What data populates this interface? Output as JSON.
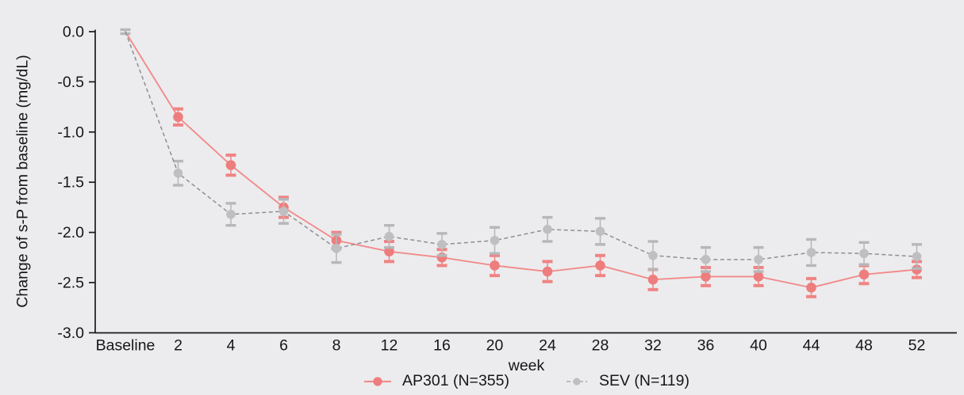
{
  "page": {
    "background_color": "#ececee",
    "axis_color": "#1a1a1a",
    "text_color": "#161616"
  },
  "chart_data": {
    "type": "line",
    "error_bars": true,
    "title": "",
    "xlabel": "week",
    "ylabel": "Change of s-P from baseline (mg/dL)",
    "categories": [
      "Baseline",
      "2",
      "4",
      "6",
      "8",
      "12",
      "16",
      "20",
      "24",
      "28",
      "32",
      "36",
      "40",
      "44",
      "48",
      "52"
    ],
    "ylim": [
      -3.0,
      0.0
    ],
    "yticks": [
      0.0,
      -0.5,
      -1.0,
      -1.5,
      -2.0,
      -2.5,
      -3.0
    ],
    "ytick_labels": [
      "0.0",
      "-0.5",
      "-1.0",
      "-1.5",
      "-2.0",
      "-2.5",
      "-3.0"
    ],
    "grid": false,
    "legend_position": "bottom-center",
    "show_marker_at_baseline": false,
    "series": [
      {
        "name": "AP301 (N=355)",
        "line_style": "solid",
        "line_color": "#f28b8b",
        "marker_color": "#ee7d7d",
        "error_color": "#f08484",
        "values": [
          0.0,
          -0.85,
          -1.33,
          -1.75,
          -2.08,
          -2.19,
          -2.25,
          -2.33,
          -2.39,
          -2.33,
          -2.47,
          -2.44,
          -2.44,
          -2.55,
          -2.42,
          -2.37
        ],
        "errors": [
          0,
          0.08,
          0.1,
          0.1,
          0.08,
          0.1,
          0.08,
          0.1,
          0.1,
          0.1,
          0.1,
          0.09,
          0.09,
          0.09,
          0.09,
          0.08
        ]
      },
      {
        "name": "SEV (N=119)",
        "line_style": "dashed",
        "line_color": "#8f8f91",
        "marker_color": "#bfbfc1",
        "error_color": "#b7b7b9",
        "values": [
          0.0,
          -1.41,
          -1.82,
          -1.79,
          -2.16,
          -2.04,
          -2.12,
          -2.08,
          -1.97,
          -1.99,
          -2.23,
          -2.27,
          -2.27,
          -2.2,
          -2.21,
          -2.24
        ],
        "errors": [
          0.02,
          0.12,
          0.11,
          0.12,
          0.14,
          0.11,
          0.11,
          0.13,
          0.12,
          0.13,
          0.14,
          0.12,
          0.12,
          0.13,
          0.11,
          0.12
        ]
      }
    ]
  }
}
